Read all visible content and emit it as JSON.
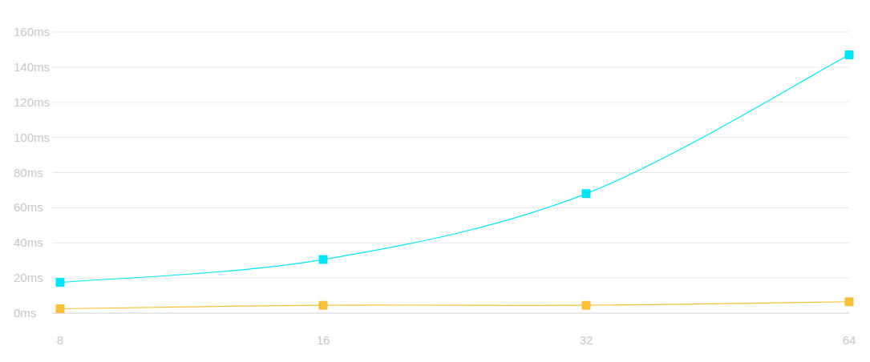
{
  "chart_data": {
    "type": "line",
    "categories": [
      "8",
      "16",
      "32",
      "64"
    ],
    "series": [
      {
        "color": "#00e5f5",
        "marker": "square",
        "values": [
          17.5,
          30.5,
          68,
          147
        ]
      },
      {
        "color": "#f7c03c",
        "marker": "square",
        "values": [
          2.5,
          4.5,
          4.5,
          6.5
        ]
      }
    ],
    "ylim": [
      0,
      160
    ],
    "yticks": [
      {
        "value": 0,
        "label": "0ms"
      },
      {
        "value": 20,
        "label": "20ms"
      },
      {
        "value": 40,
        "label": "40ms"
      },
      {
        "value": 60,
        "label": "60ms"
      },
      {
        "value": 80,
        "label": "80ms"
      },
      {
        "value": 100,
        "label": "100ms"
      },
      {
        "value": 120,
        "label": "120ms"
      },
      {
        "value": 140,
        "label": "140ms"
      },
      {
        "value": 160,
        "label": "160ms"
      }
    ],
    "grid": true
  }
}
